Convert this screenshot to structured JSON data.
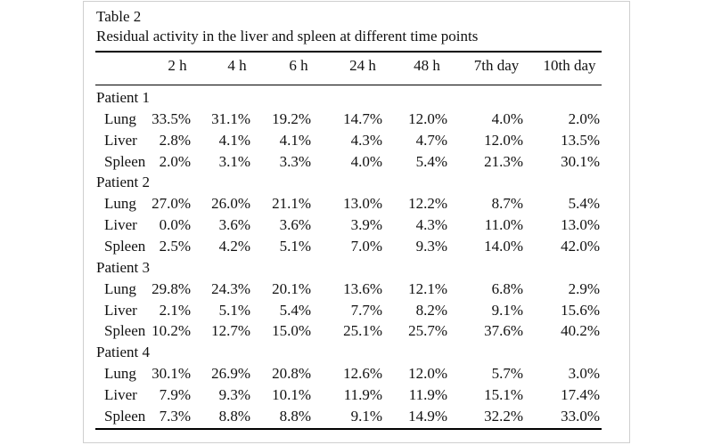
{
  "table": {
    "label": "Table 2",
    "caption": "Residual activity in the liver and spleen at different time points",
    "columns": [
      "2 h",
      "4 h",
      "6 h",
      "24 h",
      "48 h",
      "7th day",
      "10th day"
    ],
    "groups": [
      {
        "name": "Patient 1",
        "rows": [
          {
            "label": "Lung",
            "values": [
              "33.5%",
              "31.1%",
              "19.2%",
              "14.7%",
              "12.0%",
              "4.0%",
              "2.0%"
            ]
          },
          {
            "label": "Liver",
            "values": [
              "2.8%",
              "4.1%",
              "4.1%",
              "4.3%",
              "4.7%",
              "12.0%",
              "13.5%"
            ]
          },
          {
            "label": "Spleen",
            "values": [
              "2.0%",
              "3.1%",
              "3.3%",
              "4.0%",
              "5.4%",
              "21.3%",
              "30.1%"
            ]
          }
        ]
      },
      {
        "name": "Patient 2",
        "rows": [
          {
            "label": "Lung",
            "values": [
              "27.0%",
              "26.0%",
              "21.1%",
              "13.0%",
              "12.2%",
              "8.7%",
              "5.4%"
            ]
          },
          {
            "label": "Liver",
            "values": [
              "0.0%",
              "3.6%",
              "3.6%",
              "3.9%",
              "4.3%",
              "11.0%",
              "13.0%"
            ]
          },
          {
            "label": "Spleen",
            "values": [
              "2.5%",
              "4.2%",
              "5.1%",
              "7.0%",
              "9.3%",
              "14.0%",
              "42.0%"
            ]
          }
        ]
      },
      {
        "name": "Patient 3",
        "rows": [
          {
            "label": "Lung",
            "values": [
              "29.8%",
              "24.3%",
              "20.1%",
              "13.6%",
              "12.1%",
              "6.8%",
              "2.9%"
            ]
          },
          {
            "label": "Liver",
            "values": [
              "2.1%",
              "5.1%",
              "5.4%",
              "7.7%",
              "8.2%",
              "9.1%",
              "15.6%"
            ]
          },
          {
            "label": "Spleen",
            "values": [
              "10.2%",
              "12.7%",
              "15.0%",
              "25.1%",
              "25.7%",
              "37.6%",
              "40.2%"
            ]
          }
        ]
      },
      {
        "name": "Patient 4",
        "rows": [
          {
            "label": "Lung",
            "values": [
              "30.1%",
              "26.9%",
              "20.8%",
              "12.6%",
              "12.0%",
              "5.7%",
              "3.0%"
            ]
          },
          {
            "label": "Liver",
            "values": [
              "7.9%",
              "9.3%",
              "10.1%",
              "11.9%",
              "11.9%",
              "15.1%",
              "17.4%"
            ]
          },
          {
            "label": "Spleen",
            "values": [
              "7.3%",
              "8.8%",
              "8.8%",
              "9.1%",
              "14.9%",
              "32.2%",
              "33.0%"
            ]
          }
        ]
      }
    ]
  }
}
